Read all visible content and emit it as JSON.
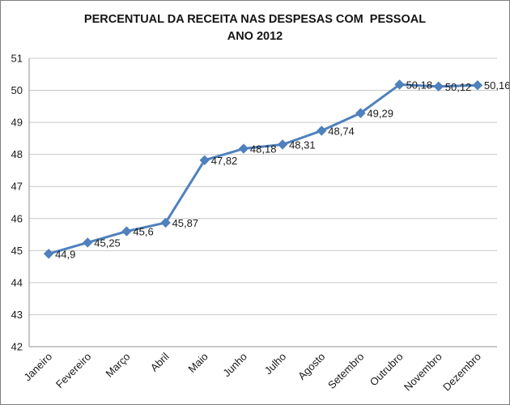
{
  "window": {
    "background": "#ffffff",
    "border_color": "#7f7f7f"
  },
  "chart_data": {
    "type": "line",
    "title": "PERCENTUAL DA RECEITA NAS DESPESAS COM  PESSOAL",
    "subtitle": "ANO 2012",
    "categories": [
      "Janeiro",
      "Fevereiro",
      "Março",
      "Abril",
      "Maio",
      "Junho",
      "Julho",
      "Agosto",
      "Setembro",
      "Outrubro",
      "Novembro",
      "Dezembro"
    ],
    "values": [
      44.9,
      45.25,
      45.6,
      45.87,
      47.82,
      48.18,
      48.31,
      48.74,
      49.29,
      50.18,
      50.12,
      50.16
    ],
    "data_labels": [
      "44,9",
      "45,25",
      "45,6",
      "45,87",
      "47,82",
      "48,18",
      "48,31",
      "48,74",
      "49,29",
      "50,18",
      "50,12",
      "50,16"
    ],
    "xlabel": "",
    "ylabel": "",
    "ylim": [
      42,
      51
    ],
    "ytick_step": 1,
    "yticks": [
      42,
      43,
      44,
      45,
      46,
      47,
      48,
      49,
      50,
      51
    ],
    "grid": true,
    "legend": "none",
    "xtick_rotation_deg": 45,
    "line_color": "#4F81BD",
    "marker": "diamond",
    "grid_color": "#C9C9C9",
    "axis_color": "#8F8F8F",
    "text_color": "#1A1A1A"
  }
}
